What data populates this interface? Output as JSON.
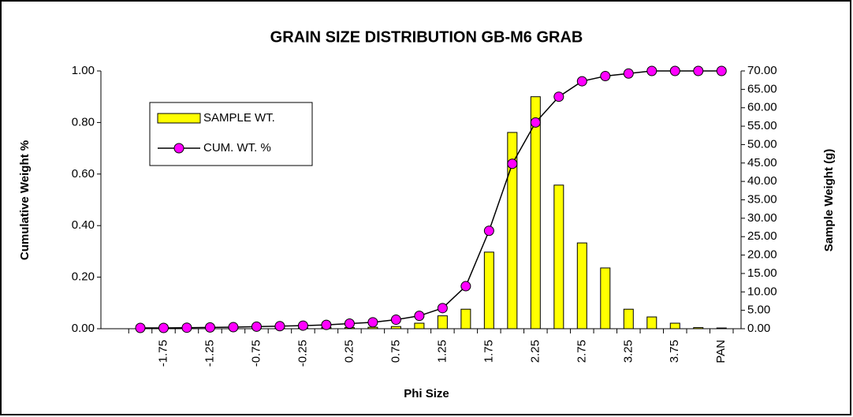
{
  "chart_data": {
    "type": "bar_line",
    "title": "GRAIN SIZE DISTRIBUTION GB-M6 GRAB",
    "x_label": "Phi Size",
    "y_label": "Cumulative Weight %",
    "y2_label": "Sample Weight (g)",
    "categories": [
      null,
      "-1.75",
      null,
      "-1.25",
      null,
      "-0.75",
      null,
      "-0.25",
      null,
      "0.25",
      null,
      "0.75",
      null,
      "1.25",
      null,
      "1.75",
      null,
      "2.25",
      null,
      "2.75",
      null,
      "3.25",
      null,
      "3.75",
      null,
      "PAN"
    ],
    "series": [
      {
        "name": "SAMPLE WT.",
        "kind": "bar",
        "axis": "y2",
        "color": "#ffff00",
        "values": [
          0.1,
          0.1,
          0.1,
          0.1,
          0.1,
          0.1,
          0.2,
          0.2,
          0.3,
          0.3,
          0.4,
          0.6,
          1.5,
          3.5,
          5.3,
          20.8,
          53.3,
          63,
          39,
          23.3,
          16.5,
          5.3,
          3.2,
          1.5,
          0.3,
          0.2
        ]
      },
      {
        "name": "CUM. WT. %",
        "kind": "line",
        "axis": "y",
        "color": "#ff00ff",
        "values": [
          0.003,
          0.003,
          0.004,
          0.005,
          0.006,
          0.008,
          0.01,
          0.012,
          0.015,
          0.02,
          0.025,
          0.035,
          0.05,
          0.08,
          0.165,
          0.38,
          0.64,
          0.8,
          0.9,
          0.96,
          0.98,
          0.99,
          1.0,
          1.0,
          1.0,
          1.0
        ]
      }
    ],
    "ylim": [
      0,
      1
    ],
    "yticks": [
      {
        "value": 0,
        "label": "0.00"
      },
      {
        "value": 0.2,
        "label": "0.20"
      },
      {
        "value": 0.4,
        "label": "0.40"
      },
      {
        "value": 0.6,
        "label": "0.60"
      },
      {
        "value": 0.8,
        "label": "0.80"
      },
      {
        "value": 1,
        "label": "1.00"
      }
    ],
    "y2lim": [
      0,
      70
    ],
    "y2ticks": [
      {
        "value": 0,
        "label": "0.00"
      },
      {
        "value": 5,
        "label": "5.00"
      },
      {
        "value": 10,
        "label": "10.00"
      },
      {
        "value": 15,
        "label": "15.00"
      },
      {
        "value": 20,
        "label": "20.00"
      },
      {
        "value": 25,
        "label": "25.00"
      },
      {
        "value": 30,
        "label": "30.00"
      },
      {
        "value": 35,
        "label": "35.00"
      },
      {
        "value": 40,
        "label": "40.00"
      },
      {
        "value": 45,
        "label": "45.00"
      },
      {
        "value": 50,
        "label": "50.00"
      },
      {
        "value": 55,
        "label": "55.00"
      },
      {
        "value": 60,
        "label": "60.00"
      },
      {
        "value": 65,
        "label": "65.00"
      },
      {
        "value": 70,
        "label": "70.00"
      }
    ],
    "legend": "upper left"
  }
}
